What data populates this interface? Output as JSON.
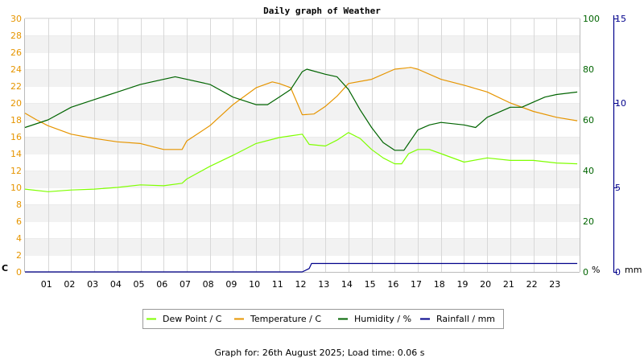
{
  "chart_data": {
    "type": "line",
    "title": "Daily graph of Weather",
    "footer": "Graph for: 26th August 2025; Load time: 0.06 s",
    "x_tick_labels": [
      "01",
      "02",
      "03",
      "04",
      "05",
      "06",
      "07",
      "08",
      "09",
      "10",
      "11",
      "12",
      "13",
      "14",
      "15",
      "16",
      "17",
      "18",
      "19",
      "20",
      "21",
      "22",
      "23"
    ],
    "x_range": [
      0,
      24
    ],
    "axes": {
      "left": {
        "unit": "C",
        "range": [
          0,
          30
        ],
        "ticks": [
          0,
          2,
          4,
          6,
          8,
          10,
          12,
          14,
          16,
          18,
          20,
          22,
          24,
          26,
          28,
          30
        ],
        "color": "#e69500"
      },
      "right1": {
        "unit": "%",
        "range": [
          0,
          100
        ],
        "ticks": [
          0,
          20,
          40,
          60,
          80,
          100
        ],
        "color": "#006400"
      },
      "right2": {
        "unit": "mm",
        "range": [
          0,
          15
        ],
        "ticks": [
          0,
          5,
          10,
          15
        ],
        "color": "#00008b"
      }
    },
    "grid": true,
    "legend_position": "bottom",
    "series": [
      {
        "name": "Dew Point / C",
        "axis": "left",
        "color": "#7fff00",
        "x": [
          0,
          1,
          2,
          3,
          4,
          5,
          6,
          6.8,
          7,
          8,
          9,
          10,
          11,
          11.5,
          12,
          12.3,
          13,
          13.5,
          14,
          14.5,
          15,
          15.5,
          16,
          16.3,
          16.6,
          17,
          17.5,
          18,
          19,
          20,
          21,
          22,
          23,
          23.9
        ],
        "y": [
          9.8,
          9.5,
          9.7,
          9.8,
          10.0,
          10.3,
          10.2,
          10.5,
          11.0,
          12.5,
          13.8,
          15.2,
          15.9,
          16.1,
          16.3,
          15.1,
          14.9,
          15.6,
          16.5,
          15.8,
          14.5,
          13.5,
          12.8,
          12.8,
          14.0,
          14.5,
          14.5,
          14.0,
          13.0,
          13.5,
          13.2,
          13.2,
          12.9,
          12.8
        ]
      },
      {
        "name": "Temperature / C",
        "axis": "left",
        "color": "#e69500",
        "x": [
          0,
          0.5,
          1,
          2,
          3,
          4,
          5,
          6,
          6.8,
          7,
          8,
          9,
          10,
          10.7,
          11,
          11.5,
          12,
          12.5,
          13,
          13.5,
          14,
          15,
          16,
          16.7,
          17,
          18,
          19,
          20,
          21,
          22,
          23,
          23.9
        ],
        "y": [
          18.8,
          18.0,
          17.3,
          16.3,
          15.8,
          15.4,
          15.2,
          14.5,
          14.5,
          15.5,
          17.3,
          19.8,
          21.8,
          22.5,
          22.3,
          21.8,
          18.6,
          18.7,
          19.6,
          20.8,
          22.3,
          22.8,
          24.0,
          24.2,
          24.0,
          22.8,
          22.1,
          21.3,
          20.0,
          19.0,
          18.3,
          17.9
        ]
      },
      {
        "name": "Humidity / %",
        "axis": "right1",
        "color": "#006400",
        "x": [
          0,
          1,
          2,
          3,
          4,
          5,
          6,
          6.5,
          7,
          8,
          9,
          10,
          10.5,
          11,
          11.5,
          12,
          12.2,
          13,
          13.5,
          14,
          14.5,
          15,
          15.5,
          16,
          16.4,
          16.7,
          17,
          17.5,
          18,
          19,
          19.5,
          20,
          21,
          21.5,
          22,
          22.5,
          23,
          23.9
        ],
        "y": [
          57,
          60,
          65,
          68,
          71,
          74,
          76,
          77,
          76,
          74,
          69,
          66,
          66,
          69,
          72,
          79,
          80,
          78,
          77,
          72,
          64,
          57,
          51,
          48,
          48,
          52,
          56,
          58,
          59,
          58,
          57,
          61,
          65,
          65,
          67,
          69,
          70,
          71
        ]
      },
      {
        "name": "Rainfall / mm",
        "axis": "right2",
        "color": "#00008b",
        "x": [
          0,
          12,
          12.3,
          12.4,
          23.9
        ],
        "y": [
          0,
          0,
          0.2,
          0.5,
          0.5
        ]
      }
    ]
  }
}
